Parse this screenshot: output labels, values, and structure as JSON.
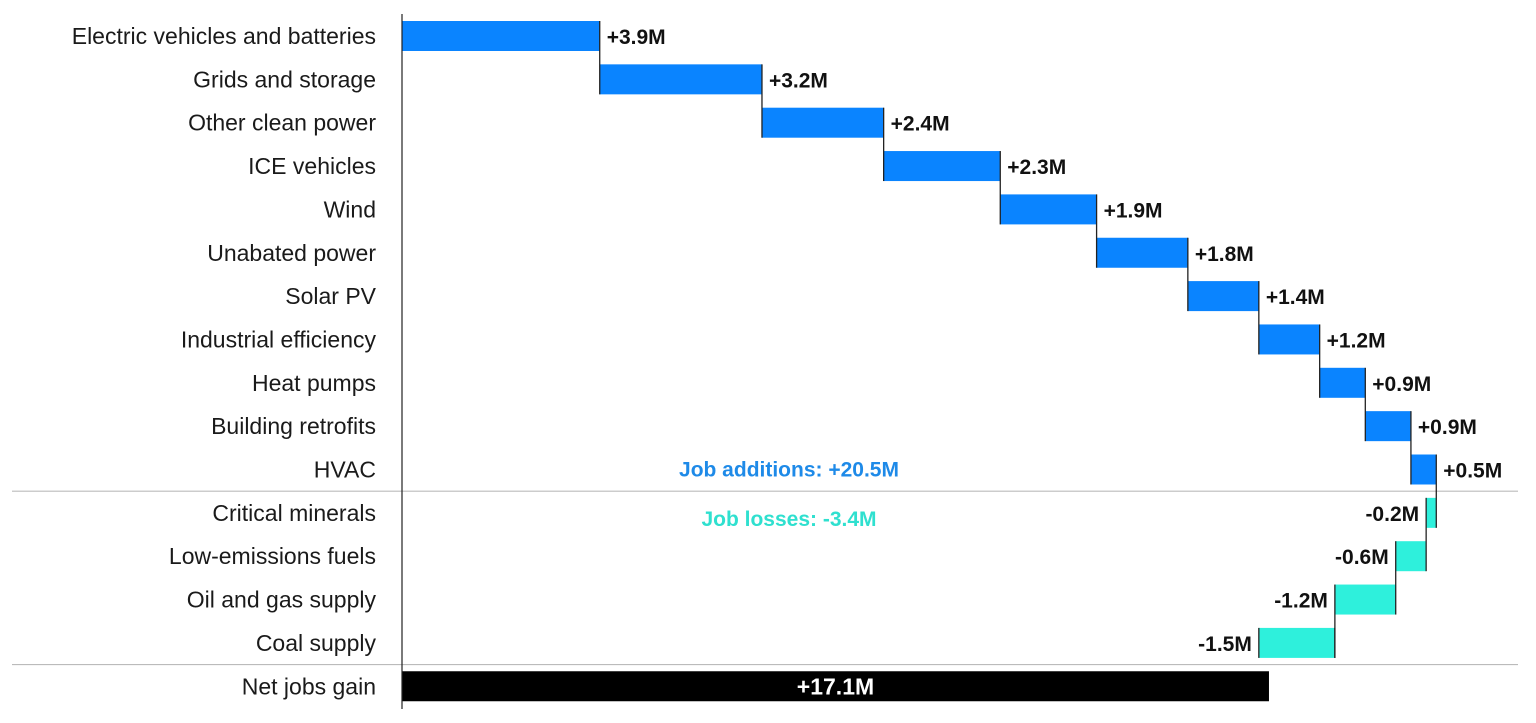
{
  "chart_data": {
    "type": "bar",
    "subtype": "horizontal-waterfall",
    "title": "",
    "xlabel": "",
    "ylabel": "",
    "unit": "M",
    "categories": [
      "Electric vehicles and batteries",
      "Grids and storage",
      "Other clean power",
      "ICE vehicles",
      "Wind",
      "Unabated power",
      "Solar PV",
      "Industrial efficiency",
      "Heat pumps",
      "Building retrofits",
      "HVAC",
      "Critical minerals",
      "Low-emissions fuels",
      "Oil and gas  supply",
      "Coal supply",
      "Net jobs gain"
    ],
    "values": [
      3.9,
      3.2,
      2.4,
      2.3,
      1.9,
      1.8,
      1.4,
      1.2,
      0.9,
      0.9,
      0.5,
      -0.2,
      -0.6,
      -1.2,
      -1.5,
      17.1
    ],
    "value_labels": [
      "+3.9M",
      "+3.2M",
      "+2.4M",
      "+2.3M",
      "+1.9M",
      "+1.8M",
      "+1.4M",
      "+1.2M",
      "+0.9M",
      "+0.9M",
      "+0.5M",
      "-0.2M",
      "-0.6M",
      "-1.2M",
      "-1.5M",
      "+17.1M"
    ],
    "xlim": [
      0,
      20.5
    ],
    "annotations": {
      "additions": "Job additions: +20.5M",
      "losses": "Job losses: -3.4M"
    },
    "colors": {
      "gain": "#0a84ff",
      "loss": "#2ef0dc",
      "net": "#000000",
      "gain_text": "#1e8ae8",
      "loss_text": "#2fe0cf",
      "divider": "#bbbbbb",
      "axis": "#222222",
      "connector": "#222222"
    }
  }
}
